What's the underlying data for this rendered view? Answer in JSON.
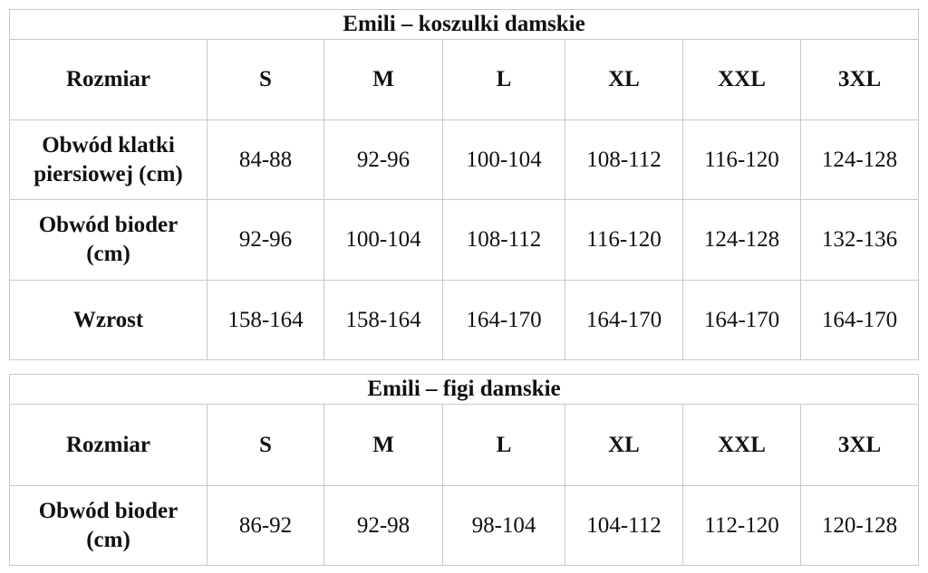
{
  "tables": [
    {
      "title": "Emili – koszulki damskie",
      "header": [
        "Rozmiar",
        "S",
        "M",
        "L",
        "XL",
        "XXL",
        "3XL"
      ],
      "rows": [
        {
          "label": "Obwód klatki piersiowej (cm)",
          "values": [
            "84-88",
            "92-96",
            "100-104",
            "108-112",
            "116-120",
            "124-128"
          ]
        },
        {
          "label": "Obwód bioder (cm)",
          "values": [
            "92-96",
            "100-104",
            "108-112",
            "116-120",
            "124-128",
            "132-136"
          ]
        },
        {
          "label": "Wzrost",
          "values": [
            "158-164",
            "158-164",
            "164-170",
            "164-170",
            "164-170",
            "164-170"
          ]
        }
      ]
    },
    {
      "title": "Emili – figi damskie",
      "header": [
        "Rozmiar",
        "S",
        "M",
        "L",
        "XL",
        "XXL",
        "3XL"
      ],
      "rows": [
        {
          "label": "Obwód bioder (cm)",
          "values": [
            "86-92",
            "92-98",
            "98-104",
            "104-112",
            "112-120",
            "120-128"
          ]
        }
      ]
    }
  ]
}
